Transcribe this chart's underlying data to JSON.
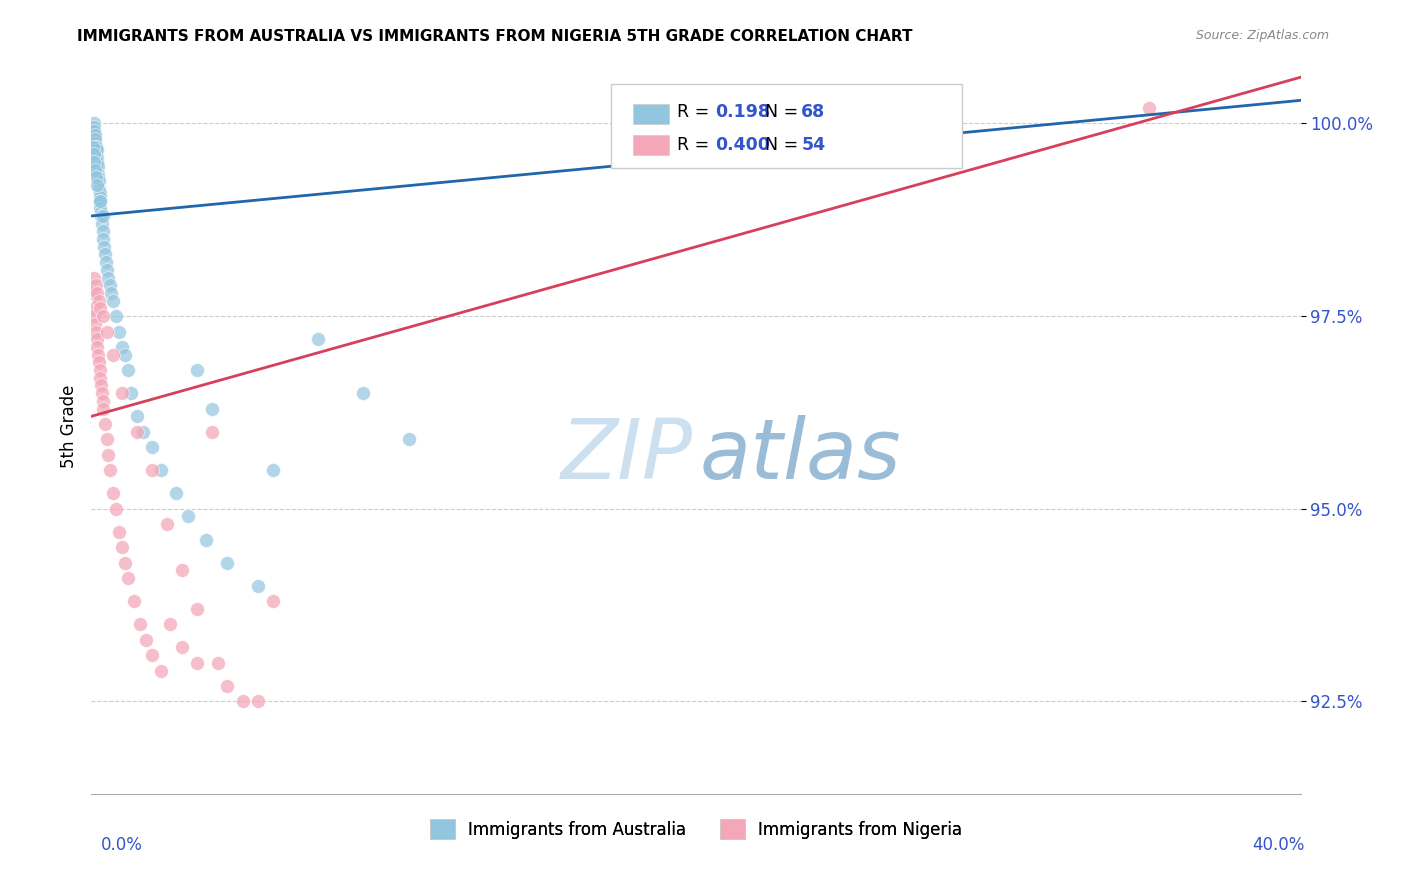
{
  "title": "IMMIGRANTS FROM AUSTRALIA VS IMMIGRANTS FROM NIGERIA 5TH GRADE CORRELATION CHART",
  "source": "Source: ZipAtlas.com",
  "ylabel": "5th Grade",
  "ytick_values": [
    92.5,
    95.0,
    97.5,
    100.0
  ],
  "xmin": 0.0,
  "xmax": 40.0,
  "ymin": 91.3,
  "ymax": 100.85,
  "legend_label_australia": "Immigrants from Australia",
  "legend_label_nigeria": "Immigrants from Nigeria",
  "color_australia": "#92c5de",
  "color_nigeria": "#f4a7b9",
  "color_australia_line": "#2166ac",
  "color_nigeria_line": "#d6405a",
  "color_RN_value": "#3355cc",
  "aus_trend_x0": 0.0,
  "aus_trend_y0": 98.8,
  "aus_trend_x1": 40.0,
  "aus_trend_y1": 100.3,
  "nig_trend_x0": 0.0,
  "nig_trend_y0": 96.2,
  "nig_trend_x1": 40.0,
  "nig_trend_y1": 100.6,
  "aus_x": [
    0.05,
    0.07,
    0.08,
    0.09,
    0.1,
    0.1,
    0.11,
    0.12,
    0.13,
    0.14,
    0.15,
    0.15,
    0.16,
    0.17,
    0.18,
    0.2,
    0.2,
    0.21,
    0.22,
    0.23,
    0.25,
    0.25,
    0.27,
    0.28,
    0.3,
    0.3,
    0.32,
    0.33,
    0.35,
    0.37,
    0.4,
    0.42,
    0.45,
    0.48,
    0.5,
    0.55,
    0.6,
    0.65,
    0.7,
    0.8,
    0.9,
    1.0,
    1.1,
    1.2,
    1.3,
    1.5,
    1.7,
    2.0,
    2.3,
    2.8,
    3.2,
    3.8,
    4.5,
    5.5,
    7.5,
    9.0,
    10.5,
    0.06,
    0.08,
    0.1,
    0.12,
    0.15,
    0.2,
    0.3,
    0.4,
    3.5,
    4.0,
    6.0
  ],
  "aus_y": [
    99.9,
    99.85,
    100.0,
    99.95,
    99.9,
    99.8,
    99.85,
    99.75,
    99.8,
    99.7,
    99.6,
    99.5,
    99.7,
    99.65,
    99.55,
    99.5,
    99.4,
    99.45,
    99.35,
    99.3,
    99.25,
    99.15,
    99.1,
    99.05,
    99.0,
    98.9,
    98.85,
    98.8,
    98.7,
    98.6,
    98.5,
    98.4,
    98.3,
    98.2,
    98.1,
    98.0,
    97.9,
    97.8,
    97.7,
    97.5,
    97.3,
    97.1,
    97.0,
    96.8,
    96.5,
    96.2,
    96.0,
    95.8,
    95.5,
    95.2,
    94.9,
    94.6,
    94.3,
    94.0,
    97.2,
    96.5,
    95.9,
    99.7,
    99.6,
    99.5,
    99.4,
    99.3,
    99.2,
    99.0,
    98.8,
    96.8,
    96.3,
    95.5
  ],
  "nig_x": [
    0.05,
    0.08,
    0.1,
    0.12,
    0.15,
    0.18,
    0.2,
    0.22,
    0.25,
    0.28,
    0.3,
    0.33,
    0.35,
    0.38,
    0.4,
    0.45,
    0.5,
    0.55,
    0.6,
    0.7,
    0.8,
    0.9,
    1.0,
    1.1,
    1.2,
    1.4,
    1.6,
    1.8,
    2.0,
    2.3,
    2.6,
    3.0,
    3.5,
    4.0,
    4.5,
    5.0,
    6.0,
    0.1,
    0.15,
    0.2,
    0.25,
    0.3,
    0.4,
    0.5,
    0.7,
    1.0,
    1.5,
    2.0,
    2.5,
    3.0,
    3.5,
    4.2,
    5.5,
    35.0
  ],
  "nig_y": [
    97.8,
    97.6,
    97.5,
    97.4,
    97.3,
    97.2,
    97.1,
    97.0,
    96.9,
    96.8,
    96.7,
    96.6,
    96.5,
    96.4,
    96.3,
    96.1,
    95.9,
    95.7,
    95.5,
    95.2,
    95.0,
    94.7,
    94.5,
    94.3,
    94.1,
    93.8,
    93.5,
    93.3,
    93.1,
    92.9,
    93.5,
    93.2,
    93.0,
    96.0,
    92.7,
    92.5,
    93.8,
    98.0,
    97.9,
    97.8,
    97.7,
    97.6,
    97.5,
    97.3,
    97.0,
    96.5,
    96.0,
    95.5,
    94.8,
    94.2,
    93.7,
    93.0,
    92.5,
    100.2
  ]
}
